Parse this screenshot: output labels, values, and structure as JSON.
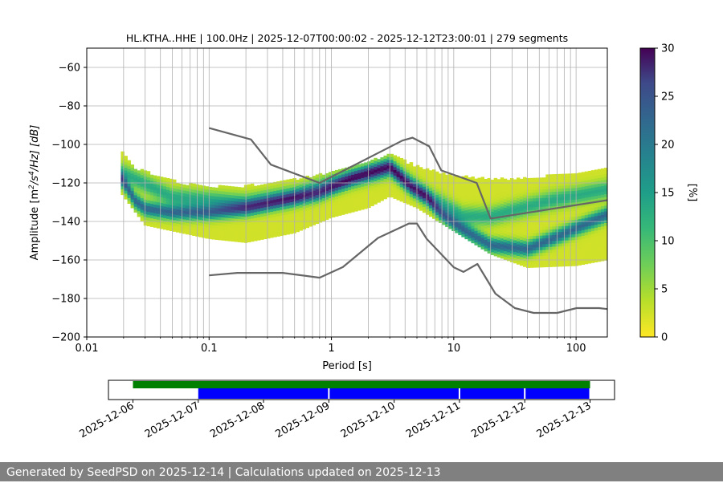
{
  "chart_data": [
    {
      "type": "heatmap",
      "title": "HL.KTHA..HHE | 100.0Hz | 2025-12-07T00:00:02 - 2025-12-12T23:00:01 | 279 segments",
      "xlabel": "Period [s]",
      "ylabel_parts": {
        "base": "Amplitude [m",
        "sup1": "2",
        "mid": "/s",
        "sup2": "4",
        "end": "/Hz] [dB]"
      },
      "xscale": "log",
      "xlim": [
        0.01,
        180
      ],
      "ylim": [
        -200,
        -50
      ],
      "x_ticks": [
        {
          "value": 0.01,
          "label": "0.01"
        },
        {
          "value": 0.1,
          "label": "0.1"
        },
        {
          "value": 1,
          "label": "1"
        },
        {
          "value": 10,
          "label": "10"
        },
        {
          "value": 100,
          "label": "100"
        }
      ],
      "y_ticks": [
        {
          "value": -200,
          "label": "−200"
        },
        {
          "value": -180,
          "label": "−180"
        },
        {
          "value": -160,
          "label": "−160"
        },
        {
          "value": -140,
          "label": "−140"
        },
        {
          "value": -120,
          "label": "−120"
        },
        {
          "value": -100,
          "label": "−100"
        },
        {
          "value": -80,
          "label": "−80"
        },
        {
          "value": -60,
          "label": "−60"
        }
      ],
      "grid": true,
      "colorbar": {
        "label": "[%]",
        "colormap": "viridis_r",
        "range": [
          0,
          30
        ],
        "ticks": [
          {
            "value": 0,
            "label": "0"
          },
          {
            "value": 5,
            "label": "5"
          },
          {
            "value": 10,
            "label": "10"
          },
          {
            "value": 15,
            "label": "15"
          },
          {
            "value": 20,
            "label": "20"
          },
          {
            "value": 25,
            "label": "25"
          },
          {
            "value": 30,
            "label": "30"
          }
        ]
      },
      "psd_density": {
        "period_range": [
          0.019,
          180
        ],
        "median_dB": [
          [
            0.019,
            -118
          ],
          [
            0.025,
            -130
          ],
          [
            0.03,
            -134
          ],
          [
            0.05,
            -136
          ],
          [
            0.1,
            -136
          ],
          [
            0.2,
            -134
          ],
          [
            0.4,
            -130
          ],
          [
            0.8,
            -126
          ],
          [
            1.5,
            -118
          ],
          [
            3,
            -112
          ],
          [
            4.5,
            -123
          ],
          [
            6,
            -128
          ],
          [
            8,
            -137
          ],
          [
            12,
            -145
          ],
          [
            20,
            -153
          ],
          [
            40,
            -155
          ],
          [
            80,
            -147
          ],
          [
            180,
            -137
          ]
        ],
        "lower_mode_dB": [
          [
            0.019,
            -115
          ],
          [
            0.05,
            -128
          ],
          [
            0.2,
            -131
          ],
          [
            0.5,
            -127
          ],
          [
            1,
            -121
          ],
          [
            3,
            -113
          ],
          [
            6,
            -127
          ],
          [
            12,
            -138
          ],
          [
            20,
            -138
          ],
          [
            60,
            -130
          ],
          [
            180,
            -124
          ]
        ],
        "upper_envelope_dB": [
          [
            0.019,
            -103
          ],
          [
            0.025,
            -113
          ],
          [
            0.06,
            -121
          ],
          [
            0.15,
            -123
          ],
          [
            0.4,
            -120
          ],
          [
            1,
            -115
          ],
          [
            3,
            -106
          ],
          [
            5,
            -112
          ],
          [
            10,
            -117
          ],
          [
            30,
            -119
          ],
          [
            80,
            -116
          ],
          [
            180,
            -113
          ]
        ],
        "lower_envelope_dB": [
          [
            0.019,
            -125
          ],
          [
            0.03,
            -142
          ],
          [
            0.1,
            -149
          ],
          [
            0.2,
            -151
          ],
          [
            0.5,
            -146
          ],
          [
            1,
            -138
          ],
          [
            2,
            -133
          ],
          [
            3,
            -127
          ],
          [
            5,
            -133
          ],
          [
            10,
            -145
          ],
          [
            20,
            -157
          ],
          [
            40,
            -164
          ],
          [
            100,
            -163
          ],
          [
            180,
            -160
          ]
        ]
      },
      "noise_models": [
        {
          "name": "NHNM",
          "points": [
            [
              0.1,
              -91.5
            ],
            [
              0.22,
              -97.4
            ],
            [
              0.32,
              -110.5
            ],
            [
              0.8,
              -120
            ],
            [
              3.8,
              -98
            ],
            [
              4.6,
              -96.5
            ],
            [
              6.3,
              -101
            ],
            [
              7.9,
              -113.5
            ],
            [
              15.4,
              -120
            ],
            [
              20,
              -138.5
            ],
            [
              354.8,
              -126
            ]
          ]
        },
        {
          "name": "NLNM",
          "points": [
            [
              0.1,
              -168
            ],
            [
              0.17,
              -166.7
            ],
            [
              0.4,
              -166.7
            ],
            [
              0.8,
              -169.2
            ],
            [
              1.24,
              -163.7
            ],
            [
              2.4,
              -148.6
            ],
            [
              4.3,
              -141.1
            ],
            [
              5,
              -141.1
            ],
            [
              6,
              -149
            ],
            [
              10,
              -163.8
            ],
            [
              12,
              -166.2
            ],
            [
              15.6,
              -162.1
            ],
            [
              21.9,
              -177.5
            ],
            [
              31.6,
              -185
            ],
            [
              45,
              -187.5
            ],
            [
              70,
              -187.5
            ],
            [
              101,
              -185
            ],
            [
              154,
              -185
            ],
            [
              180,
              -185.5
            ]
          ]
        }
      ]
    },
    {
      "type": "timeline",
      "x_ticks": [
        "2025-12-06",
        "2025-12-07",
        "2025-12-08",
        "2025-12-09",
        "2025-12-10",
        "2025-12-11",
        "2025-12-12",
        "2025-12-13"
      ],
      "xlim": [
        "2025-12-05T15:00",
        "2025-12-13T09:00"
      ],
      "data_available": [
        {
          "start": "2025-12-06T00:00",
          "end": "2025-12-13T00:00",
          "color": "#008000"
        }
      ],
      "psd_coverage": [
        {
          "start": "2025-12-07T00:00",
          "end": "2025-12-09T00:00",
          "color": "#0000ff"
        },
        {
          "start": "2025-12-09T00:00",
          "end": "2025-12-11T00:00",
          "color": "#0000ff"
        },
        {
          "start": "2025-12-11T00:00",
          "end": "2025-12-12T00:00",
          "color": "#0000ff"
        },
        {
          "start": "2025-12-12T00:00",
          "end": "2025-12-13T00:00",
          "color": "#0000ff"
        }
      ]
    }
  ],
  "footer": "Generated by SeedPSD on 2025-12-14 | Calculations updated on 2025-12-13"
}
